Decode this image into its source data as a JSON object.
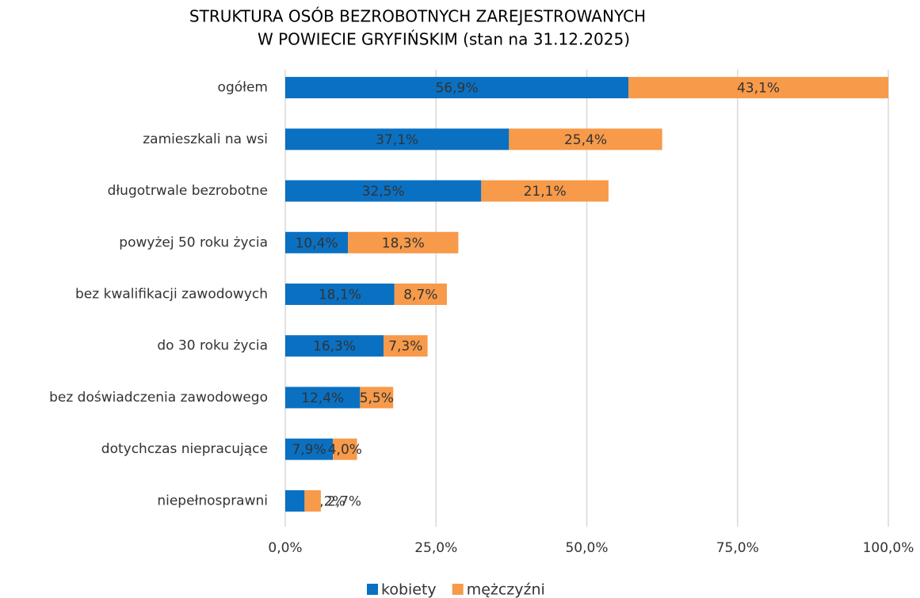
{
  "chart_data": {
    "type": "stacked_barh",
    "title": [
      "STRUKTURA OSÓB BEZROBOTNYCH ZAREJESTROWANYCH",
      "W POWIECIE GRYFIŃSKIM  (stan na 31.12.2025)"
    ],
    "categories": [
      "ogółem",
      "zamieszkali na wsi",
      "długotrwale bezrobotne",
      "powyżej 50 roku życia",
      "bez kwalifikacji zawodowych",
      "do 30 roku życia",
      "bez doświadczenia zawodowego",
      "dotychczas niepracujące",
      "niepełnosprawni"
    ],
    "series": [
      {
        "name": "kobiety",
        "color": "#0a70c2",
        "values": [
          56.9,
          37.1,
          32.5,
          10.4,
          18.1,
          16.3,
          12.4,
          7.9,
          3.2
        ],
        "value_labels": [
          "56,9%",
          "37,1%",
          "32,5%",
          "10,4%",
          "18,1%",
          "16,3%",
          "12,4%",
          "7,9%",
          "3,2%"
        ]
      },
      {
        "name": "mężczyźni",
        "color": "#f79a4a",
        "values": [
          43.1,
          25.4,
          21.1,
          18.3,
          8.7,
          7.3,
          5.5,
          4.0,
          2.7
        ],
        "value_labels": [
          "43,1%",
          "25,4%",
          "21,1%",
          "18,3%",
          "8,7%",
          "7,3%",
          "5,5%",
          "4,0%",
          "2,7%"
        ]
      }
    ],
    "xlim": [
      0,
      100
    ],
    "xticks": [
      {
        "value": 0,
        "label": "0,0%"
      },
      {
        "value": 25,
        "label": "25,0%"
      },
      {
        "value": 50,
        "label": "50,0%"
      },
      {
        "value": 75,
        "label": "75,0%"
      },
      {
        "value": 100,
        "label": "100,0%"
      }
    ],
    "grid": true,
    "legend": "bottom"
  }
}
